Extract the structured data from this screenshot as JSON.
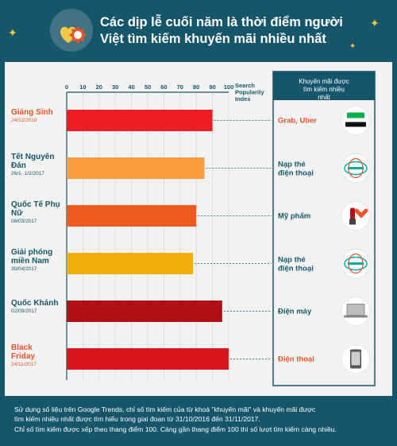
{
  "header": {
    "title": "Các dịp lễ cuối năm là thời điểm người Việt tìm kiếm khuyến mãi nhiều nhất"
  },
  "colors": {
    "background": "#16566b",
    "panel": "#f2f2f2",
    "label_orange": "#e8552a",
    "text_dark": "#16566b"
  },
  "chart_data": {
    "type": "bar",
    "orientation": "horizontal",
    "xlabel": "Search Popularity Index",
    "xlim": [
      0,
      100
    ],
    "xticks": [
      "0",
      "10",
      "20",
      "30",
      "40",
      "50",
      "60",
      "70",
      "80",
      "90",
      "100"
    ],
    "grid": true,
    "categories": [
      {
        "name": "Giáng Sinh",
        "date": "24/12/2016",
        "value": 90,
        "color": "#ee1c25",
        "promo": "Grab, Uber",
        "icon": "grab-uber-logo",
        "name_color": "#e8552a"
      },
      {
        "name": "Tết Nguyên Đán",
        "date": "26/1- 1/2/2017",
        "value": 85,
        "color": "#fb9a3c",
        "promo": "Nạp thẻ điện thoại",
        "icon": "viettel-logo",
        "name_color": "#16566b"
      },
      {
        "name": "Quốc Tế Phụ Nữ",
        "date": "08/03/2017",
        "value": 80,
        "color": "#f05a1e",
        "promo": "Mỹ phẩm",
        "icon": "cosmetics-icon",
        "name_color": "#16566b"
      },
      {
        "name": "Giải phóng miền Nam",
        "date": "30/04/2017",
        "value": 78,
        "color": "#f2ad07",
        "promo": "Nạp thẻ điện thoại",
        "icon": "viettel-logo",
        "name_color": "#16566b"
      },
      {
        "name": "Quốc Khánh",
        "date": "02/09/2017",
        "value": 96,
        "color": "#b10f13",
        "promo": "Điện máy",
        "icon": "laptop-icon",
        "name_color": "#16566b"
      },
      {
        "name": "Black Friday",
        "date": "24/11/2017",
        "value": 100,
        "color": "#d8161d",
        "promo": "Điện thoại",
        "icon": "smartphone-icon",
        "name_color": "#e8552a"
      }
    ],
    "right_header": "Khuyến mãi được tìm kiếm nhiều nhất"
  },
  "footer": {
    "line1": "Sử dụng số liệu trên Google Trends, chỉ số tìm kiếm của từ khoá \"khuyến mãi\" và khuyến mãi được",
    "line2": "tìm kiếm nhiều nhất được tìm hiểu trong giai đoạn từ 31/10/2016 đến 31/11/2017.",
    "line3": "Chỉ số tìm kiếm được xếp theo thang điểm 100. Càng gần thang điểm 100 thì số lượt tìm kiếm càng nhiều."
  }
}
